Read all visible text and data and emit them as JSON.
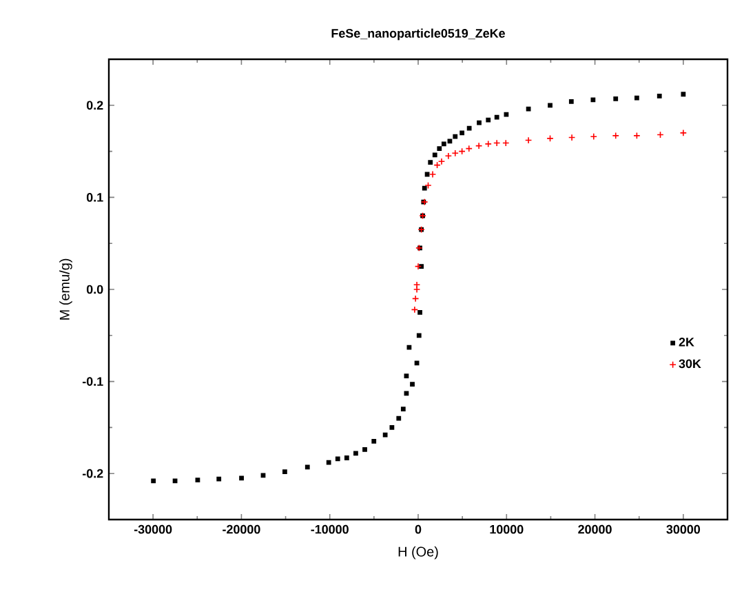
{
  "chart_data": {
    "type": "scatter",
    "title": "FeSe_nanoparticle0519_ZeKe",
    "xlabel": "H (Oe)",
    "ylabel": "M (emu/g)",
    "xlim": [
      -35000,
      35000
    ],
    "ylim": [
      -0.25,
      0.25
    ],
    "xticks": [
      -30000,
      -20000,
      -10000,
      0,
      10000,
      20000,
      30000
    ],
    "yticks": [
      -0.2,
      -0.1,
      {
        "value": 0,
        "label": "0.0"
      },
      0.1,
      0.2
    ],
    "legend": "right",
    "grid": false,
    "series": [
      {
        "name": "2K",
        "color": "#000000",
        "marker": "square",
        "x": [
          -29960,
          -27510,
          -24950,
          -22550,
          -19990,
          -17540,
          -15090,
          -12530,
          -10120,
          -9100,
          -8080,
          -7060,
          -6040,
          -5010,
          -3730,
          -2970,
          -2200,
          -1690,
          -1330,
          -660,
          -1330,
          -1020,
          -150,
          100,
          200,
          360,
          200,
          360,
          510,
          610,
          720,
          1020,
          1380,
          1890,
          2400,
          2910,
          3580,
          4190,
          4960,
          5780,
          6900,
          7930,
          8900,
          9970,
          12480,
          14930,
          17330,
          19790,
          22350,
          24740,
          27300,
          30000
        ],
        "values": [
          -0.208,
          -0.208,
          -0.207,
          -0.206,
          -0.205,
          -0.202,
          -0.198,
          -0.193,
          -0.188,
          -0.184,
          -0.183,
          -0.178,
          -0.174,
          -0.165,
          -0.158,
          -0.15,
          -0.14,
          -0.13,
          -0.113,
          -0.103,
          -0.094,
          -0.063,
          -0.08,
          -0.05,
          -0.025,
          0.025,
          0.045,
          0.065,
          0.08,
          0.095,
          0.11,
          0.125,
          0.138,
          0.146,
          0.153,
          0.158,
          0.161,
          0.166,
          0.17,
          0.175,
          0.181,
          0.184,
          0.187,
          0.19,
          0.196,
          0.2,
          0.204,
          0.206,
          0.207,
          0.208,
          0.21,
          0.212
        ]
      },
      {
        "name": "30K",
        "color": "#ff0000",
        "marker": "cross",
        "x": [
          -400,
          -300,
          -150,
          -150,
          0,
          100,
          360,
          510,
          720,
          1130,
          1640,
          2150,
          2650,
          3420,
          4190,
          4960,
          5750,
          6870,
          7930,
          8900,
          9920,
          12480,
          14930,
          17390,
          19860,
          22350,
          24740,
          27400,
          30000
        ],
        "values": [
          -0.022,
          -0.01,
          0,
          0.005,
          0.025,
          0.045,
          0.065,
          0.08,
          0.095,
          0.113,
          0.125,
          0.135,
          0.139,
          0.145,
          0.148,
          0.15,
          0.153,
          0.156,
          0.158,
          0.159,
          0.159,
          0.162,
          0.164,
          0.165,
          0.166,
          0.167,
          0.167,
          0.168,
          0.17
        ]
      }
    ]
  }
}
